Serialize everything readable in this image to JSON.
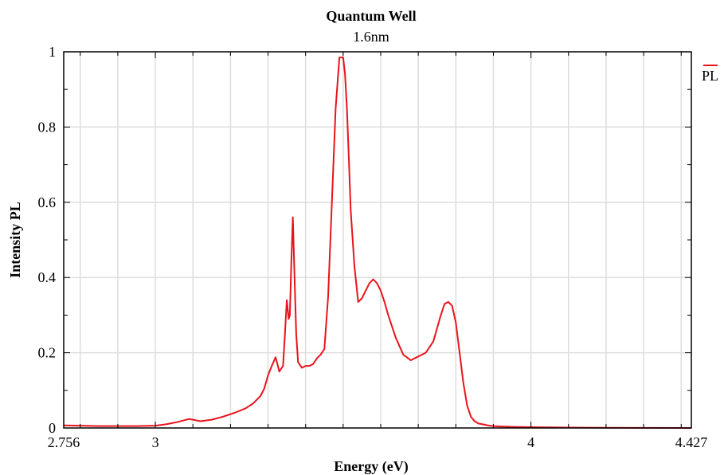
{
  "chart_data": {
    "type": "line",
    "title": "Quantum Well",
    "subtitle": "1.6nm",
    "xlabel": "Energy (eV)",
    "ylabel": "Intensity PL",
    "xlim": [
      2.756,
      4.427
    ],
    "ylim": [
      0,
      1
    ],
    "x_ticks": [
      2.756,
      3,
      4,
      4.427
    ],
    "x_tick_labels": [
      "2.756",
      "3",
      "4",
      "4.427"
    ],
    "y_ticks": [
      0,
      0.2,
      0.4,
      0.6,
      0.8,
      1
    ],
    "y_tick_labels": [
      "0",
      "0.2",
      "0.4",
      "0.6",
      "0.8",
      "1"
    ],
    "grid": true,
    "legend": {
      "position": "top-right",
      "entries": [
        "PL"
      ]
    },
    "series": [
      {
        "name": "PL",
        "color": "#e8141c",
        "x": [
          2.756,
          2.8,
          2.85,
          2.9,
          2.95,
          3.0,
          3.03,
          3.06,
          3.09,
          3.12,
          3.15,
          3.18,
          3.21,
          3.24,
          3.26,
          3.28,
          3.29,
          3.3,
          3.31,
          3.32,
          3.325,
          3.33,
          3.34,
          3.345,
          3.35,
          3.355,
          3.358,
          3.362,
          3.366,
          3.37,
          3.375,
          3.38,
          3.39,
          3.4,
          3.41,
          3.42,
          3.43,
          3.44,
          3.45,
          3.46,
          3.47,
          3.48,
          3.49,
          3.5,
          3.505,
          3.51,
          3.515,
          3.52,
          3.53,
          3.54,
          3.55,
          3.56,
          3.57,
          3.58,
          3.59,
          3.6,
          3.61,
          3.62,
          3.64,
          3.66,
          3.68,
          3.7,
          3.72,
          3.74,
          3.76,
          3.77,
          3.78,
          3.79,
          3.8,
          3.81,
          3.82,
          3.83,
          3.84,
          3.85,
          3.86,
          3.87,
          3.88,
          3.89,
          3.9,
          3.92,
          3.95,
          4.0,
          4.1,
          4.2,
          4.3,
          4.427
        ],
        "y": [
          0.007,
          0.006,
          0.005,
          0.005,
          0.005,
          0.006,
          0.01,
          0.016,
          0.024,
          0.018,
          0.022,
          0.03,
          0.04,
          0.052,
          0.065,
          0.085,
          0.105,
          0.14,
          0.165,
          0.188,
          0.17,
          0.15,
          0.165,
          0.25,
          0.34,
          0.29,
          0.3,
          0.44,
          0.56,
          0.42,
          0.25,
          0.175,
          0.16,
          0.165,
          0.165,
          0.17,
          0.185,
          0.195,
          0.21,
          0.35,
          0.6,
          0.85,
          0.985,
          0.985,
          0.94,
          0.85,
          0.72,
          0.58,
          0.43,
          0.335,
          0.345,
          0.365,
          0.385,
          0.395,
          0.385,
          0.365,
          0.335,
          0.3,
          0.24,
          0.195,
          0.18,
          0.19,
          0.2,
          0.23,
          0.3,
          0.33,
          0.335,
          0.325,
          0.28,
          0.2,
          0.12,
          0.06,
          0.03,
          0.018,
          0.012,
          0.01,
          0.008,
          0.006,
          0.005,
          0.004,
          0.003,
          0.002,
          0.001,
          0.0005,
          0.0002,
          0.0
        ]
      }
    ]
  }
}
